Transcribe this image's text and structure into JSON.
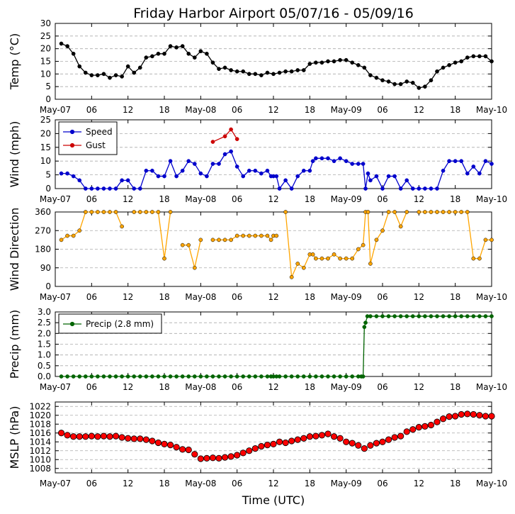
{
  "chart_data": {
    "title": "Friday Harbor Airport 05/07/16 - 05/09/16",
    "xlabel": "Time (UTC)",
    "x_start": "2016-05-07T00:00Z",
    "x_end": "2016-05-10T00:00Z",
    "x_ticks": [
      {
        "h": 0,
        "label": "May-07"
      },
      {
        "h": 6,
        "label": "06"
      },
      {
        "h": 12,
        "label": "12"
      },
      {
        "h": 18,
        "label": "18"
      },
      {
        "h": 24,
        "label": "May-08"
      },
      {
        "h": 30,
        "label": "06"
      },
      {
        "h": 36,
        "label": "12"
      },
      {
        "h": 42,
        "label": "18"
      },
      {
        "h": 48,
        "label": "May-09"
      },
      {
        "h": 54,
        "label": "06"
      },
      {
        "h": 60,
        "label": "12"
      },
      {
        "h": 66,
        "label": "18"
      },
      {
        "h": 72,
        "label": "May-10"
      }
    ],
    "panels": [
      {
        "id": "temp",
        "type": "line",
        "ylabel": "Temp (°C)",
        "ylim": [
          0,
          30
        ],
        "yticks": [
          0,
          5,
          10,
          15,
          20,
          25,
          30
        ],
        "grid": true,
        "series": [
          {
            "key": "temp",
            "color": "#000000",
            "marker": "circle",
            "x": [
              1,
              2,
              3,
              4,
              5,
              6,
              7,
              8,
              9,
              10,
              11,
              12,
              13,
              14,
              15,
              16,
              17,
              18,
              19,
              20,
              21,
              22,
              23,
              24,
              25,
              26,
              27,
              28,
              29,
              30,
              31,
              32,
              33,
              34,
              35,
              36,
              37,
              38,
              39,
              40,
              41,
              42,
              43,
              44,
              45,
              46,
              47,
              48,
              49,
              50,
              51,
              52,
              53,
              54,
              55,
              56,
              57,
              58,
              59,
              60,
              61,
              62,
              63,
              64,
              65,
              66,
              67,
              68,
              69,
              70,
              71,
              72
            ],
            "y": [
              22,
              21,
              18,
              13,
              10.5,
              9.5,
              9.5,
              10,
              8.5,
              9.5,
              9,
              13,
              10.5,
              12.5,
              16.5,
              17,
              18,
              18,
              21,
              20.5,
              21,
              18,
              16.5,
              19,
              18,
              14.5,
              12,
              12.5,
              11.5,
              11,
              11,
              10,
              10,
              9.5,
              10.5,
              10,
              10.5,
              11,
              11,
              11.5,
              11.5,
              14,
              14.5,
              14.5,
              15,
              15,
              15.5,
              15.5,
              14.5,
              13.5,
              12.5,
              9.5,
              8.5,
              7.5,
              7,
              6,
              6,
              7,
              6.5,
              4.5,
              5,
              7.5,
              11,
              12.5,
              13.5,
              14.5,
              15,
              16.5,
              17,
              17,
              17,
              15
            ]
          }
        ]
      },
      {
        "id": "wind",
        "type": "line",
        "ylabel": "Wind (mph)",
        "ylim": [
          0,
          25
        ],
        "yticks": [
          0,
          5,
          10,
          15,
          20,
          25
        ],
        "grid": true,
        "legend": "top-left",
        "series": [
          {
            "key": "speed",
            "name": "Speed",
            "color": "#0000cc",
            "marker": "circle",
            "x": [
              1,
              2,
              3,
              4,
              5,
              6,
              7,
              8,
              9,
              10,
              11,
              12,
              13,
              14,
              15,
              16,
              17,
              18,
              19,
              20,
              21,
              22,
              23,
              24,
              25,
              26,
              27,
              28,
              29,
              30,
              31,
              32,
              33,
              34,
              35,
              35.6,
              36,
              36.5,
              37,
              38,
              39,
              40,
              41,
              42,
              42.5,
              43,
              44,
              45,
              46,
              47,
              48,
              49,
              50,
              50.8,
              51.2,
              51.6,
              52,
              53,
              54,
              55,
              56,
              57,
              58,
              59,
              60,
              61,
              62,
              63,
              64,
              65,
              66,
              67,
              68,
              69,
              70,
              71,
              72
            ],
            "y": [
              5.5,
              5.5,
              4.5,
              3,
              0,
              0,
              0,
              0,
              0,
              0,
              3,
              3,
              0,
              0,
              6.5,
              6.5,
              4.5,
              4.5,
              10,
              4.5,
              6.5,
              10,
              9,
              5.5,
              4.5,
              9,
              9,
              12.5,
              13.5,
              8,
              4.5,
              6.5,
              6.5,
              5.5,
              6.5,
              4.5,
              4.5,
              4.5,
              0,
              3,
              0,
              4.5,
              6.5,
              6.5,
              10,
              11,
              11,
              11,
              10,
              11,
              10,
              9,
              9,
              9,
              0,
              5.5,
              3,
              4.5,
              0,
              4.5,
              4.5,
              0,
              3,
              0,
              0,
              0,
              0,
              0,
              6.5,
              10,
              10,
              10,
              5.5,
              8,
              5.5,
              10,
              9
            ]
          },
          {
            "key": "gust",
            "name": "Gust",
            "color": "#cc0000",
            "marker": "circle",
            "x": [
              26,
              28,
              29,
              30
            ],
            "y": [
              17,
              19,
              21.5,
              18
            ]
          }
        ]
      },
      {
        "id": "wdir",
        "type": "line",
        "ylabel": "Wind Direction",
        "ylim": [
          0,
          360
        ],
        "yticks": [
          0,
          90,
          180,
          270,
          360
        ],
        "grid": true,
        "series": [
          {
            "key": "direction",
            "color": "#ffa500",
            "marker": "circle",
            "x": [
              1,
              2,
              3,
              4,
              5,
              6,
              7,
              8,
              9,
              10,
              11,
              12,
              13,
              14,
              15,
              16,
              17,
              18,
              19,
              20,
              21,
              22,
              23,
              24,
              25,
              26,
              27,
              28,
              29,
              30,
              31,
              32,
              33,
              34,
              35,
              35.6,
              36,
              36.5,
              37,
              38,
              39,
              40,
              41,
              42,
              42.5,
              43,
              44,
              45,
              46,
              47,
              48,
              49,
              50,
              50.8,
              51.2,
              51.6,
              52,
              53,
              54,
              55,
              56,
              57,
              58,
              59,
              60,
              61,
              62,
              63,
              64,
              65,
              66,
              67,
              68,
              69,
              70,
              71,
              72
            ],
            "y": [
              225,
              245,
              245,
              270,
              360,
              360,
              360,
              360,
              360,
              360,
              290,
              null,
              360,
              360,
              360,
              360,
              360,
              135,
              360,
              null,
              200,
              200,
              90,
              225,
              null,
              225,
              225,
              225,
              225,
              245,
              245,
              245,
              245,
              245,
              245,
              225,
              245,
              245,
              null,
              360,
              45,
              110,
              90,
              155,
              155,
              135,
              135,
              135,
              155,
              135,
              135,
              135,
              180,
              200,
              360,
              360,
              110,
              225,
              270,
              360,
              360,
              290,
              360,
              null,
              360,
              360,
              360,
              360,
              360,
              360,
              360,
              360,
              360,
              135,
              135,
              225,
              225
            ]
          }
        ]
      },
      {
        "id": "precip",
        "type": "line",
        "ylabel": "Precip (mm)",
        "ylim": [
          0,
          3
        ],
        "yticks": [
          0.0,
          0.5,
          1.0,
          1.5,
          2.0,
          2.5,
          3.0
        ],
        "grid": true,
        "legend": "top-left",
        "series": [
          {
            "key": "precip",
            "name": "Precip (2.8 mm)",
            "color": "#006400",
            "marker": "circle",
            "x": [
              1,
              2,
              3,
              4,
              5,
              6,
              7,
              8,
              9,
              10,
              11,
              12,
              13,
              14,
              15,
              16,
              17,
              18,
              19,
              20,
              21,
              22,
              23,
              24,
              25,
              26,
              27,
              28,
              29,
              30,
              31,
              32,
              33,
              34,
              35,
              35.6,
              36,
              36.5,
              37,
              38,
              39,
              40,
              41,
              42,
              43,
              44,
              45,
              46,
              47,
              48,
              49,
              50,
              50.5,
              50.8,
              51,
              51.2,
              51.5,
              52,
              53,
              54,
              55,
              56,
              57,
              58,
              59,
              60,
              61,
              62,
              63,
              64,
              65,
              66,
              67,
              68,
              69,
              70,
              71,
              72
            ],
            "y": [
              0,
              0,
              0,
              0,
              0,
              0,
              0,
              0,
              0,
              0,
              0,
              0,
              0,
              0,
              0,
              0,
              0,
              0,
              0,
              0,
              0,
              0,
              0,
              0,
              0,
              0,
              0,
              0,
              0,
              0,
              0,
              0,
              0,
              0,
              0,
              0,
              0,
              0,
              0,
              0,
              0,
              0,
              0,
              0,
              0,
              0,
              0,
              0,
              0,
              0,
              0,
              0,
              0,
              0,
              2.3,
              2.5,
              2.8,
              2.8,
              2.8,
              2.8,
              2.8,
              2.8,
              2.8,
              2.8,
              2.8,
              2.8,
              2.8,
              2.8,
              2.8,
              2.8,
              2.8,
              2.8,
              2.8,
              2.8,
              2.8,
              2.8,
              2.8,
              2.8
            ]
          }
        ]
      },
      {
        "id": "mslp",
        "type": "line",
        "ylabel": "MSLP (hPa)",
        "ylim": [
          1007,
          1023
        ],
        "yticks": [
          1008,
          1010,
          1012,
          1014,
          1016,
          1018,
          1020,
          1022
        ],
        "grid": true,
        "series": [
          {
            "key": "mslp",
            "color": "#ff0000",
            "marker": "circle",
            "line": false,
            "x": [
              1,
              2,
              3,
              4,
              5,
              6,
              7,
              8,
              9,
              10,
              11,
              12,
              13,
              14,
              15,
              16,
              17,
              18,
              19,
              20,
              21,
              22,
              23,
              24,
              25,
              26,
              27,
              28,
              29,
              30,
              31,
              32,
              33,
              34,
              35,
              36,
              37,
              38,
              39,
              40,
              41,
              42,
              43,
              44,
              45,
              46,
              47,
              48,
              49,
              50,
              51,
              52,
              53,
              54,
              55,
              56,
              57,
              58,
              59,
              60,
              61,
              62,
              63,
              64,
              65,
              66,
              67,
              68,
              69,
              70,
              71,
              72
            ],
            "y": [
              1016,
              1015.5,
              1015.2,
              1015.2,
              1015.2,
              1015.3,
              1015.2,
              1015.3,
              1015.2,
              1015.3,
              1015,
              1014.8,
              1014.7,
              1014.7,
              1014.5,
              1014.2,
              1013.8,
              1013.5,
              1013.3,
              1012.8,
              1012.3,
              1012.2,
              1011.2,
              1010.2,
              1010.3,
              1010.4,
              1010.3,
              1010.5,
              1010.7,
              1011,
              1011.5,
              1012,
              1012.5,
              1013,
              1013.3,
              1013.5,
              1014,
              1013.8,
              1014.2,
              1014.5,
              1014.8,
              1015.2,
              1015.3,
              1015.5,
              1015.8,
              1015.2,
              1014.8,
              1014,
              1013.7,
              1013.2,
              1012.5,
              1013.2,
              1013.7,
              1014,
              1014.5,
              1015,
              1015.3,
              1016.3,
              1016.8,
              1017.3,
              1017.5,
              1017.8,
              1018.5,
              1019.2,
              1019.7,
              1019.8,
              1020.2,
              1020.3,
              1020.2,
              1020,
              1019.8,
              1019.8
            ]
          }
        ]
      }
    ]
  }
}
